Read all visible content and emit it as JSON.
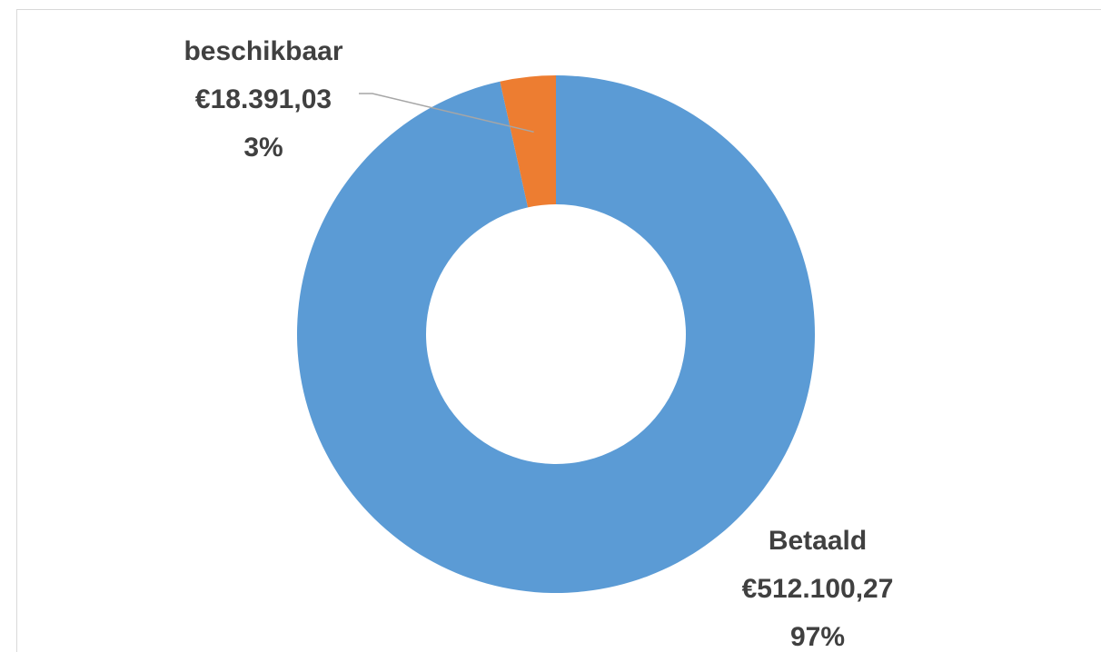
{
  "chart_data": {
    "type": "donut",
    "categories": [
      "Betaald",
      "beschikbaar"
    ],
    "values": [
      512100.27,
      18391.03
    ],
    "value_labels": [
      "€512.100,27",
      "€18.391,03"
    ],
    "percentages": [
      97,
      3
    ],
    "percentage_labels": [
      "97%",
      "3%"
    ],
    "colors": [
      "#5b9bd5",
      "#ed7d31"
    ]
  }
}
